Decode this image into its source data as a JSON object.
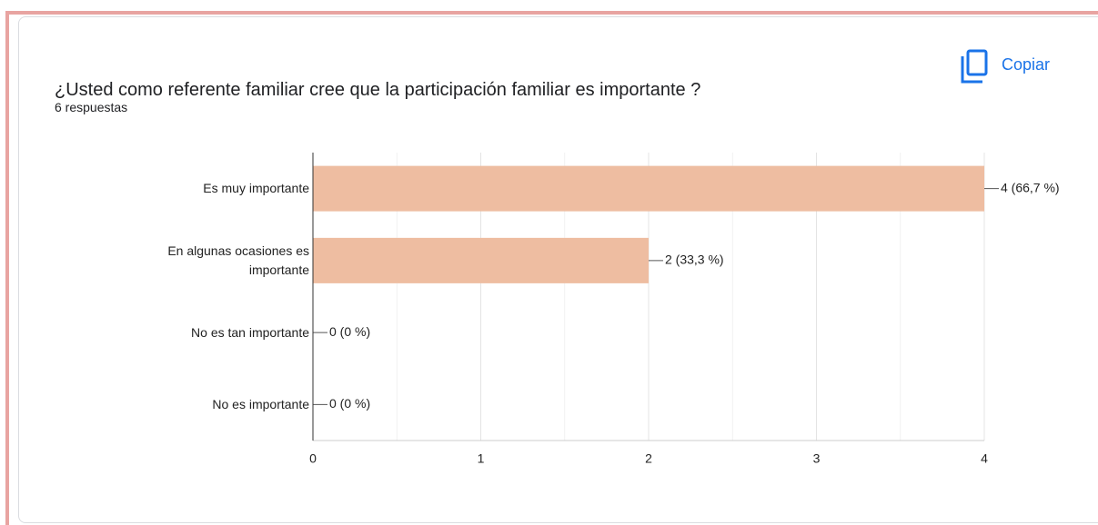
{
  "title": "¿Usted como referente familiar cree que la participación familiar es importante ?",
  "subtitle": "6 respuestas",
  "copy_button": "Copiar",
  "chart_data": {
    "type": "bar",
    "orientation": "horizontal",
    "categories": [
      "Es muy importante",
      "En algunas ocasiones es importante",
      "No es tan importante",
      "No es importante"
    ],
    "values": [
      4,
      2,
      0,
      0
    ],
    "value_labels": [
      "4 (66,7 %)",
      "2 (33,3 %)",
      "0 (0 %)",
      "0 (0 %)"
    ],
    "color": "#eebda1",
    "xlim": [
      0,
      4
    ],
    "xticks": [
      0,
      1,
      2,
      3,
      4
    ],
    "grid": true
  }
}
